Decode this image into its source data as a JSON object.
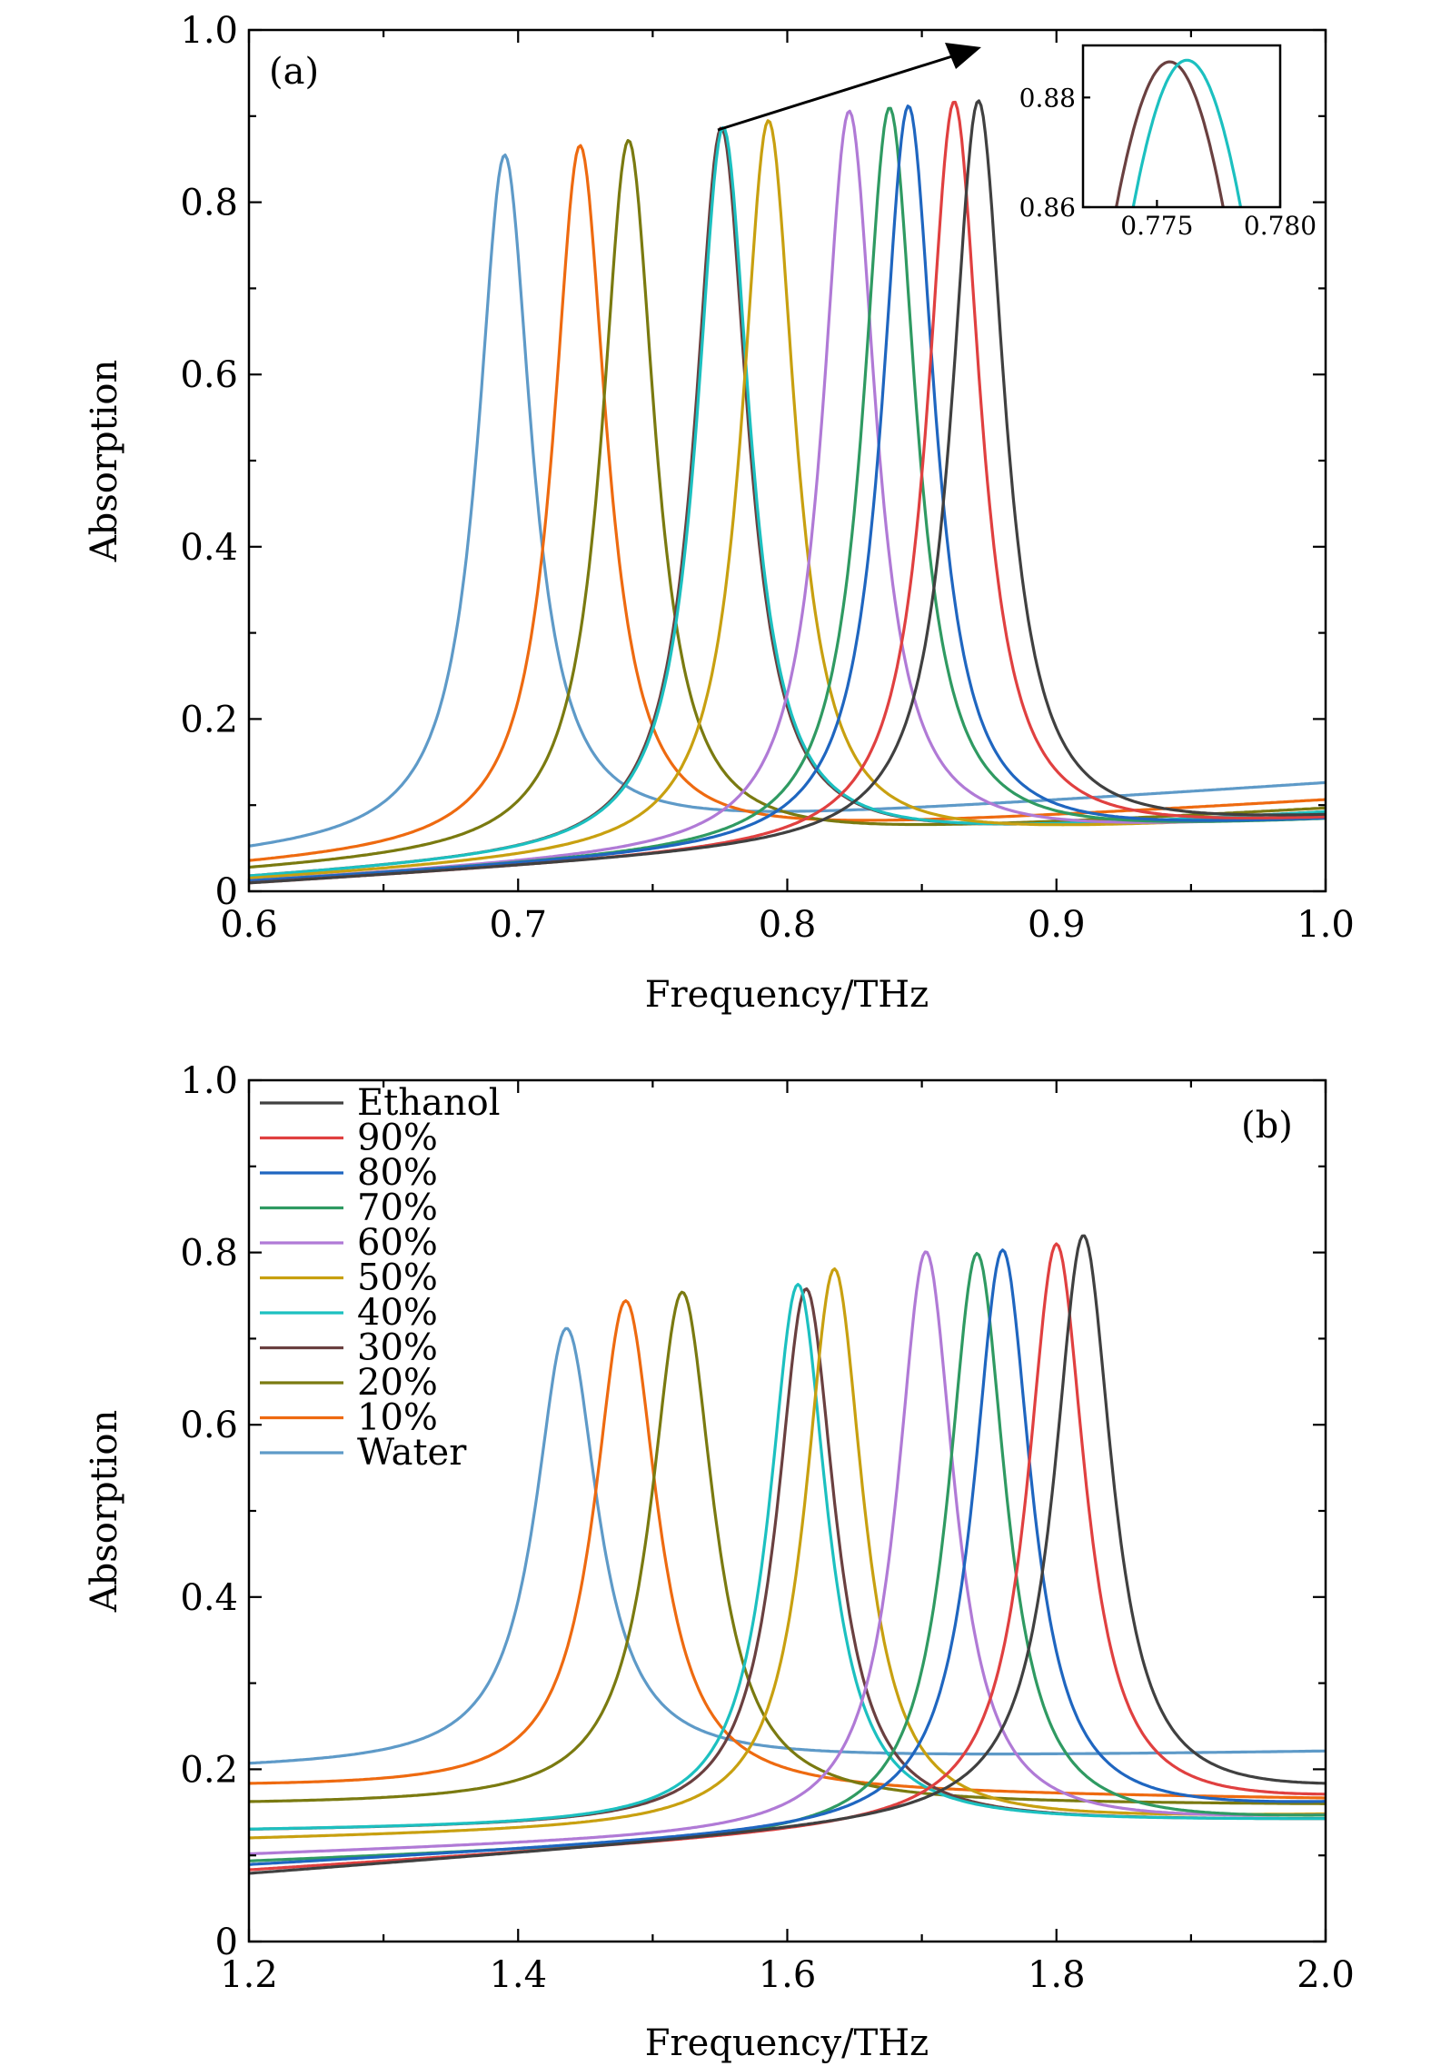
{
  "colors": {
    "Ethanol": "#404040",
    "90%": "#e04040",
    "80%": "#1f66c0",
    "70%": "#2f9a62",
    "60%": "#b07ad6",
    "50%": "#c8a010",
    "40%": "#1cc0c0",
    "30%": "#6a4040",
    "20%": "#7a7a10",
    "10%": "#ee6a10",
    "Water": "#5e9ac8"
  },
  "legend": {
    "position": "top-left",
    "entries": [
      "Ethanol",
      "90%",
      "80%",
      "70%",
      "60%",
      "50%",
      "40%",
      "30%",
      "20%",
      "10%",
      "Water"
    ]
  },
  "chart_data": [
    {
      "type": "line",
      "panel_label": "(a)",
      "xlabel": "Frequency/THz",
      "ylabel": "Absorption",
      "xlim": [
        0.6,
        1.0
      ],
      "ylim": [
        0,
        1.0
      ],
      "x_ticks": [
        "0.6",
        "0.7",
        "0.8",
        "0.9",
        "1.0"
      ],
      "y_ticks": [
        "0",
        "0.2",
        "0.4",
        "0.6",
        "0.8",
        "1.0"
      ],
      "series": [
        {
          "name": "Water",
          "peak_x": 0.695,
          "peak_y": 0.855,
          "base_left": 0.04,
          "base_right": 0.125,
          "width": 0.012
        },
        {
          "name": "10%",
          "peak_x": 0.723,
          "peak_y": 0.866,
          "base_left": 0.028,
          "base_right": 0.105,
          "width": 0.012
        },
        {
          "name": "20%",
          "peak_x": 0.741,
          "peak_y": 0.872,
          "base_left": 0.022,
          "base_right": 0.095,
          "width": 0.012
        },
        {
          "name": "30%",
          "peak_x": 0.7755,
          "peak_y": 0.8865,
          "base_left": 0.014,
          "base_right": 0.09,
          "width": 0.012
        },
        {
          "name": "40%",
          "peak_x": 0.7762,
          "peak_y": 0.8868,
          "base_left": 0.014,
          "base_right": 0.09,
          "width": 0.012
        },
        {
          "name": "50%",
          "peak_x": 0.793,
          "peak_y": 0.895,
          "base_left": 0.012,
          "base_right": 0.085,
          "width": 0.012
        },
        {
          "name": "60%",
          "peak_x": 0.823,
          "peak_y": 0.906,
          "base_left": 0.01,
          "base_right": 0.082,
          "width": 0.012
        },
        {
          "name": "70%",
          "peak_x": 0.838,
          "peak_y": 0.91,
          "base_left": 0.01,
          "base_right": 0.08,
          "width": 0.012
        },
        {
          "name": "80%",
          "peak_x": 0.845,
          "peak_y": 0.912,
          "base_left": 0.01,
          "base_right": 0.08,
          "width": 0.012
        },
        {
          "name": "90%",
          "peak_x": 0.862,
          "peak_y": 0.917,
          "base_left": 0.008,
          "base_right": 0.08,
          "width": 0.012
        },
        {
          "name": "Ethanol",
          "peak_x": 0.871,
          "peak_y": 0.918,
          "base_left": 0.008,
          "base_right": 0.082,
          "width": 0.012
        }
      ],
      "inset": {
        "xlim": [
          0.772,
          0.78
        ],
        "ylim": [
          0.86,
          0.8895
        ],
        "x_ticks": [
          "0.775",
          "0.780"
        ],
        "y_ticks": [
          "0.86",
          "0.88"
        ],
        "series": [
          "30%",
          "40%"
        ]
      }
    },
    {
      "type": "line",
      "panel_label": "(b)",
      "xlabel": "Frequency/THz",
      "ylabel": "Absorption",
      "xlim": [
        1.2,
        2.0
      ],
      "ylim": [
        0,
        1.0
      ],
      "x_ticks": [
        "1.2",
        "1.4",
        "1.6",
        "1.8",
        "2.0"
      ],
      "y_ticks": [
        "0",
        "0.2",
        "0.4",
        "0.6",
        "0.8",
        "1.0"
      ],
      "series": [
        {
          "name": "Water",
          "peak_x": 1.436,
          "peak_y": 0.712,
          "base_left": 0.2,
          "base_right": 0.22,
          "width": 0.028
        },
        {
          "name": "10%",
          "peak_x": 1.48,
          "peak_y": 0.744,
          "base_left": 0.178,
          "base_right": 0.165,
          "width": 0.028
        },
        {
          "name": "20%",
          "peak_x": 1.522,
          "peak_y": 0.754,
          "base_left": 0.158,
          "base_right": 0.158,
          "width": 0.028
        },
        {
          "name": "30%",
          "peak_x": 1.614,
          "peak_y": 0.758,
          "base_left": 0.128,
          "base_right": 0.14,
          "width": 0.026
        },
        {
          "name": "40%",
          "peak_x": 1.608,
          "peak_y": 0.763,
          "base_left": 0.128,
          "base_right": 0.14,
          "width": 0.026
        },
        {
          "name": "50%",
          "peak_x": 1.635,
          "peak_y": 0.781,
          "base_left": 0.118,
          "base_right": 0.145,
          "width": 0.026
        },
        {
          "name": "60%",
          "peak_x": 1.703,
          "peak_y": 0.801,
          "base_left": 0.1,
          "base_right": 0.142,
          "width": 0.026
        },
        {
          "name": "70%",
          "peak_x": 1.741,
          "peak_y": 0.799,
          "base_left": 0.092,
          "base_right": 0.14,
          "width": 0.026
        },
        {
          "name": "80%",
          "peak_x": 1.76,
          "peak_y": 0.803,
          "base_left": 0.088,
          "base_right": 0.155,
          "width": 0.026
        },
        {
          "name": "90%",
          "peak_x": 1.8,
          "peak_y": 0.81,
          "base_left": 0.082,
          "base_right": 0.16,
          "width": 0.026
        },
        {
          "name": "Ethanol",
          "peak_x": 1.82,
          "peak_y": 0.82,
          "base_left": 0.078,
          "base_right": 0.17,
          "width": 0.026
        }
      ]
    }
  ]
}
